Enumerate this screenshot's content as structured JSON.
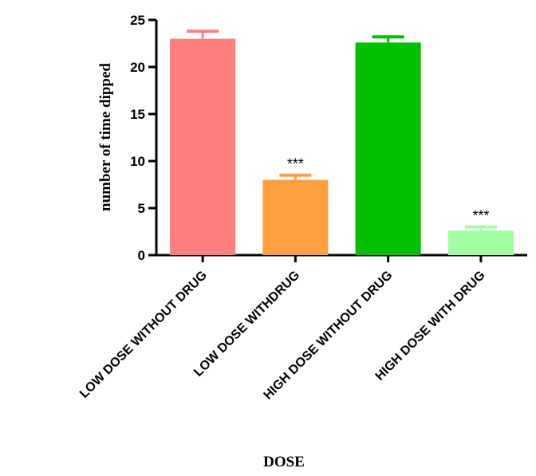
{
  "chart_data": {
    "type": "bar",
    "categories": [
      "LOW DOSE WITHOUT DRUG",
      "LOW DOSE WITHDRUG",
      "HIGH DOSE WITHOUT DRUG",
      "HIGH DOSE WITH DRUG"
    ],
    "values": [
      23.0,
      8.0,
      22.6,
      2.6
    ],
    "errors": [
      0.8,
      0.5,
      0.6,
      0.4
    ],
    "significance": [
      "",
      "***",
      "",
      "***"
    ],
    "colors": [
      "#ff7f7f",
      "#ffa040",
      "#00c000",
      "#a0ffa0"
    ],
    "xlabel": "DOSE",
    "ylabel": "number of time dipped",
    "ylim": [
      0,
      25
    ],
    "yticks": [
      0,
      5,
      10,
      15,
      20,
      25
    ],
    "grid": false,
    "legend": "none"
  }
}
